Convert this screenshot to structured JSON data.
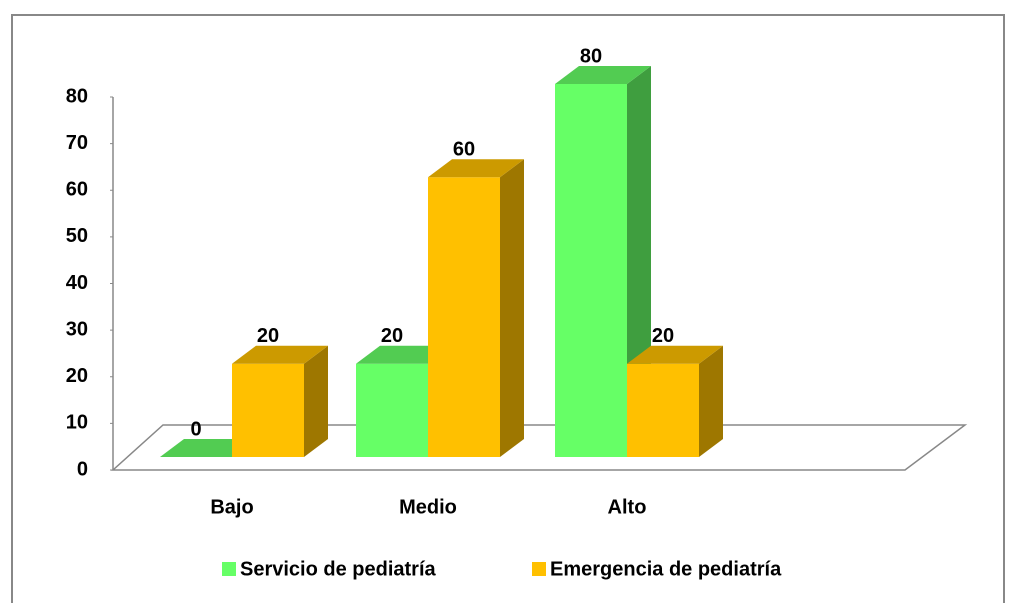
{
  "chart_data": {
    "type": "bar3d",
    "categories": [
      "Bajo",
      "Medio",
      "Alto"
    ],
    "series": [
      {
        "name": "Servicio de pediatría",
        "color": "#66ff66",
        "values": [
          0,
          20,
          80
        ]
      },
      {
        "name": "Emergencia de pediatría",
        "color": "#ffc000",
        "values": [
          20,
          60,
          20
        ]
      }
    ],
    "ylim": [
      0,
      80
    ],
    "yticks": [
      0,
      10,
      20,
      30,
      40,
      50,
      60,
      70,
      80
    ],
    "legend": "bottom"
  }
}
